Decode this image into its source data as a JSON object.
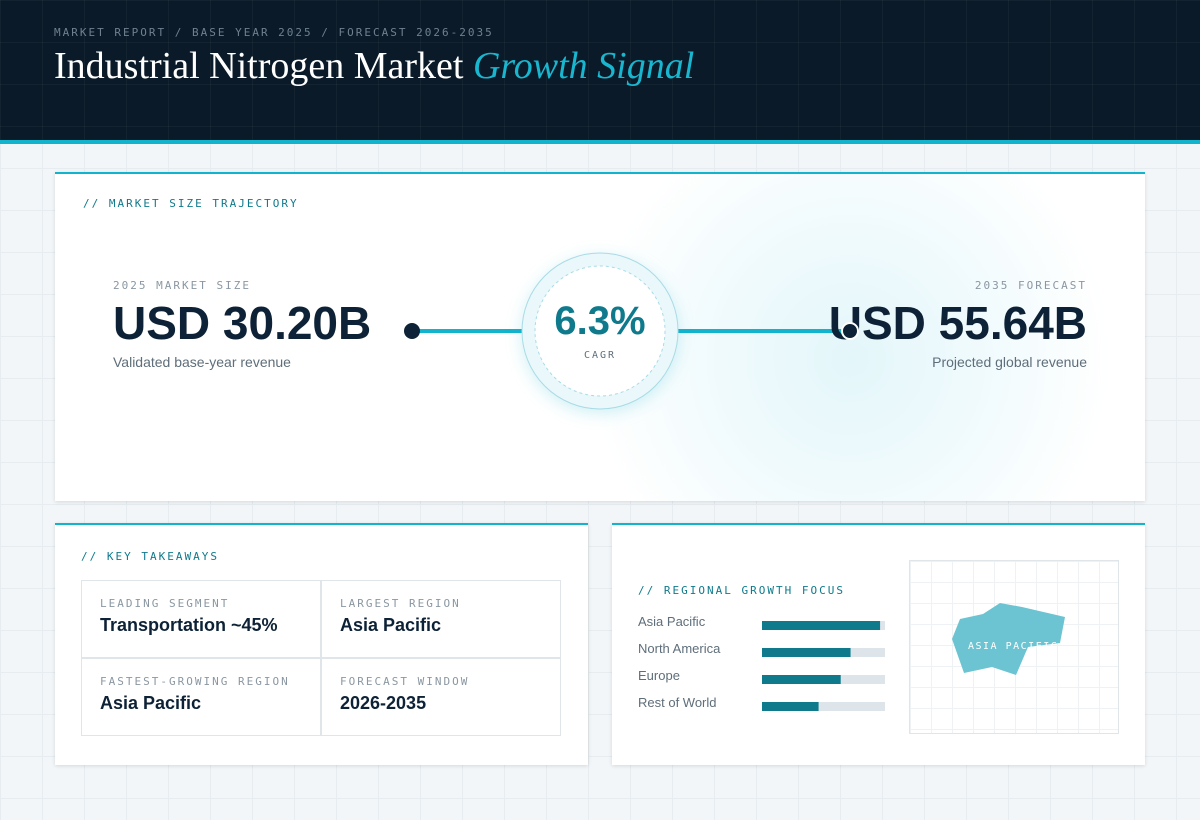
{
  "header": {
    "eyebrow": "MARKET REPORT / BASE YEAR 2025 / FORECAST 2026-2035",
    "title": "Industrial Nitrogen Market",
    "title_accent": "Growth Signal"
  },
  "trajectory": {
    "label": "// MARKET SIZE TRAJECTORY",
    "start": {
      "label": "2025 MARKET SIZE",
      "value": "USD 30.20B",
      "note": "Validated base-year revenue"
    },
    "cagr": {
      "value": "6.3%",
      "label": "CAGR"
    },
    "end": {
      "label": "2035 FORECAST",
      "value": "USD 55.64B",
      "note": "Projected global revenue"
    }
  },
  "takeaways": {
    "label": "// KEY TAKEAWAYS",
    "cells": [
      {
        "label": "LEADING SEGMENT",
        "value": "Transportation ~45%"
      },
      {
        "label": "LARGEST REGION",
        "value": "Asia Pacific"
      },
      {
        "label": "FASTEST-GROWING REGION",
        "value": "Asia Pacific"
      },
      {
        "label": "FORECAST WINDOW",
        "value": "2026-2035"
      }
    ]
  },
  "regional": {
    "label": "// REGIONAL GROWTH FOCUS",
    "xlim": [
      0,
      100
    ],
    "color": "#0e7a8c",
    "track": "#dde5ea",
    "regions": [
      "Asia Pacific",
      "North America",
      "Europe",
      "Rest of World"
    ],
    "values": [
      96,
      72,
      64,
      46
    ],
    "map_label": "ASIA PACIFIC"
  }
}
